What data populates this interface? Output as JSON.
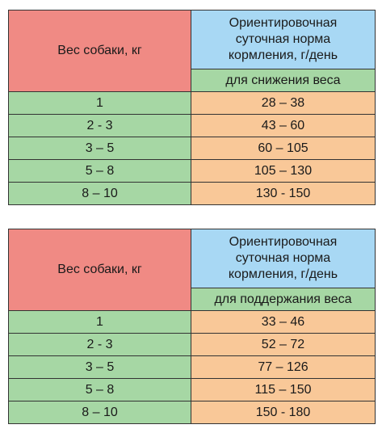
{
  "tables": [
    {
      "weight_header": "Вес собаки, кг",
      "norm_header": "Ориентировочная суточная норма кормления, г/день",
      "norm_header_lines": [
        "Ориентировочная",
        "суточная норма",
        "кормления, г/день"
      ],
      "sub_header": "для снижения веса",
      "rows": [
        {
          "weight": "1",
          "norm": "28 – 38"
        },
        {
          "weight": "2 - 3",
          "norm": "43 – 60"
        },
        {
          "weight": "3 – 5",
          "norm": "60 – 105"
        },
        {
          "weight": "5 – 8",
          "norm": "105 – 130"
        },
        {
          "weight": "8 – 10",
          "norm": "130 - 150"
        }
      ]
    },
    {
      "weight_header": "Вес собаки, кг",
      "norm_header": "Ориентировочная суточная норма кормления, г/день",
      "norm_header_lines": [
        "Ориентировочная",
        "суточная норма",
        "кормления, г/день"
      ],
      "sub_header": "для поддержания веса",
      "rows": [
        {
          "weight": "1",
          "norm": "33 – 46"
        },
        {
          "weight": "2 - 3",
          "norm": "52 – 72"
        },
        {
          "weight": "3 – 5",
          "norm": "77 – 126"
        },
        {
          "weight": "5 – 8",
          "norm": "115 – 150"
        },
        {
          "weight": "8 – 10",
          "norm": "150 - 180"
        }
      ]
    }
  ],
  "colors": {
    "header_red": "#f08a84",
    "header_blue": "#a8d8f4",
    "green": "#a6d7a4",
    "orange": "#f9c898",
    "border": "#333333"
  }
}
